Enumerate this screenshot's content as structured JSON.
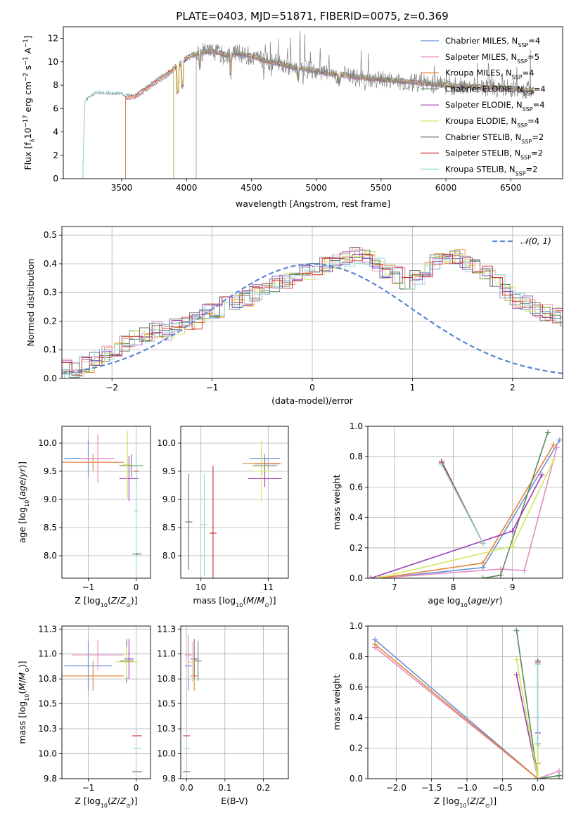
{
  "figure": {
    "title": "PLATE=0403, MJD=51871, FIBERID=0075, z=0.369"
  },
  "colors": [
    "#6a8fd8",
    "#e38bc2",
    "#e5822f",
    "#5a8a5a",
    "#9b3bb5",
    "#d3e55e",
    "#6a6a6a",
    "#c62828",
    "#8fd8d8"
  ],
  "chart_data": [
    {
      "id": "spectrum",
      "type": "line",
      "xlabel": "wavelength [Angstrom, rest frame]",
      "ylabel": "Flux [f_λ10^-17 erg cm^-2 s^-1 A^-1]",
      "xlim": [
        3050,
        6900
      ],
      "ylim": [
        0,
        13
      ],
      "xticks": [
        3500,
        4000,
        4500,
        5000,
        5500,
        6000,
        6500
      ],
      "yticks": [
        0,
        2,
        4,
        6,
        8,
        10,
        12
      ],
      "grid": false,
      "legend_position": "top-right",
      "legend": [
        {
          "pre": "Chabrier MILES, N",
          "sub": "SSP",
          "post": "=4"
        },
        {
          "pre": "Salpeter MILES, N",
          "sub": "SSP",
          "post": "=5"
        },
        {
          "pre": "Kroupa MILES, N",
          "sub": "SSP",
          "post": "=4"
        },
        {
          "pre": "Chabrier ELODIE, N",
          "sub": "SSP",
          "post": "=4"
        },
        {
          "pre": "Salpeter ELODIE, N",
          "sub": "SSP",
          "post": "=4"
        },
        {
          "pre": "Kroupa ELODIE, N",
          "sub": "SSP",
          "post": "=4"
        },
        {
          "pre": "Chabrier STELIB, N",
          "sub": "SSP",
          "post": "=2"
        },
        {
          "pre": "Salpeter STELIB, N",
          "sub": "SSP",
          "post": "=2"
        },
        {
          "pre": "Kroupa STELIB, N",
          "sub": "SSP",
          "post": "=2"
        }
      ],
      "model_starts": [
        3530,
        3530,
        3530,
        3900,
        3900,
        3900,
        3200,
        3530,
        3200
      ],
      "continuum": [
        [
          3200,
          0
        ],
        [
          3215,
          6.6
        ],
        [
          3300,
          7.3
        ],
        [
          3400,
          7.2
        ],
        [
          3500,
          7.2
        ],
        [
          3530,
          7.0
        ],
        [
          3600,
          7.0
        ],
        [
          3700,
          7.8
        ],
        [
          3800,
          8.6
        ],
        [
          3850,
          8.9
        ],
        [
          3920,
          9.6
        ],
        [
          3970,
          10.0
        ],
        [
          4000,
          10.3
        ],
        [
          4050,
          10.6
        ],
        [
          4100,
          10.8
        ],
        [
          4200,
          10.9
        ],
        [
          4300,
          10.6
        ],
        [
          4400,
          10.7
        ],
        [
          4500,
          10.5
        ],
        [
          4600,
          10.1
        ],
        [
          4700,
          9.9
        ],
        [
          4800,
          9.6
        ],
        [
          4900,
          9.4
        ],
        [
          5000,
          9.2
        ],
        [
          5100,
          9.0
        ],
        [
          5200,
          8.9
        ],
        [
          5300,
          8.7
        ],
        [
          5400,
          8.6
        ],
        [
          5500,
          8.5
        ],
        [
          5600,
          8.4
        ],
        [
          5700,
          8.3
        ],
        [
          5800,
          8.2
        ],
        [
          5900,
          8.1
        ],
        [
          6000,
          8.0
        ],
        [
          6100,
          7.9
        ],
        [
          6200,
          7.9
        ],
        [
          6300,
          7.8
        ],
        [
          6400,
          7.8
        ],
        [
          6500,
          7.7
        ],
        [
          6600,
          7.6
        ],
        [
          6680,
          7.6
        ]
      ]
    },
    {
      "id": "residuals",
      "type": "histogram",
      "xlabel": "(data-model)/error",
      "ylabel": "Normed distribution",
      "xlim": [
        -2.5,
        2.5
      ],
      "ylim": [
        0,
        0.53
      ],
      "xticks": [
        -2,
        -1,
        0,
        1,
        2
      ],
      "yticks": [
        0,
        0.1,
        0.2,
        0.3,
        0.4,
        0.5
      ],
      "grid": true,
      "legend_position": "top-right",
      "reference": {
        "label": "𝒩(0, 1)",
        "mean": 0,
        "sigma": 1
      },
      "bin_width": 0.1,
      "bin_start": -2.5,
      "base_counts": [
        0.04,
        0.03,
        0.05,
        0.07,
        0.09,
        0.1,
        0.12,
        0.14,
        0.15,
        0.17,
        0.16,
        0.18,
        0.19,
        0.2,
        0.23,
        0.24,
        0.26,
        0.27,
        0.28,
        0.3,
        0.31,
        0.33,
        0.34,
        0.36,
        0.37,
        0.38,
        0.4,
        0.41,
        0.42,
        0.43,
        0.42,
        0.39,
        0.37,
        0.36,
        0.34,
        0.35,
        0.38,
        0.41,
        0.42,
        0.42,
        0.4,
        0.39,
        0.37,
        0.34,
        0.3,
        0.27,
        0.26,
        0.24,
        0.23,
        0.22,
        0.2,
        0.18,
        0.17,
        0.15,
        0.14,
        0.13,
        0.11,
        0.1,
        0.09,
        0.08,
        0.07,
        0.06,
        0.05,
        0.05,
        0.04,
        0.03,
        0.02,
        0.02,
        0.01,
        0.01,
        0.01,
        0.01
      ]
    },
    {
      "id": "age-vs-Z",
      "type": "errorbar",
      "xlabel": "Z [log10(Z/Z⊙)]",
      "ylabel": "age [log10(age/yr)]",
      "xlim": [
        -1.55,
        0.3
      ],
      "ylim": [
        7.6,
        10.3
      ],
      "xticks": [
        -1,
        0
      ],
      "yticks": [
        8.0,
        8.5,
        9.0,
        9.5,
        10.0
      ],
      "grid": true,
      "points": [
        {
          "x": -1.0,
          "y": 9.73,
          "xerr": 0.5,
          "yerr": 0.33
        },
        {
          "x": -0.8,
          "y": 9.73,
          "xerr": 0.35,
          "yerr": 0.43
        },
        {
          "x": -0.9,
          "y": 9.66,
          "xerr": 0.65,
          "yerr": 0.15
        },
        {
          "x": -0.1,
          "y": 9.6,
          "xerr": 0.25,
          "yerr": 0.2
        },
        {
          "x": -0.15,
          "y": 9.37,
          "xerr": 0.2,
          "yerr": 0.4
        },
        {
          "x": -0.18,
          "y": 9.62,
          "xerr": 0.1,
          "yerr": 0.6
        },
        {
          "x": 0.02,
          "y": 8.03,
          "xerr": 0.1,
          "yerr": 0.02
        },
        {
          "x": 0.0,
          "y": 9.5,
          "xerr": 0.05,
          "yerr": 0.3
        },
        {
          "x": 0.0,
          "y": 8.8,
          "xerr": 0.05,
          "yerr": 1.05
        }
      ]
    },
    {
      "id": "age-vs-mass",
      "type": "errorbar",
      "xlabel": "mass [log10(M/M⊙)]",
      "ylabel": "",
      "xlim": [
        9.7,
        11.3
      ],
      "ylim": [
        7.6,
        10.3
      ],
      "xticks": [
        10,
        11
      ],
      "yticks": [
        8.0,
        8.5,
        9.0,
        9.5,
        10.0
      ],
      "grid": true,
      "points": [
        {
          "x": 10.95,
          "y": 9.73,
          "xerr": 0.22,
          "yerr": 0.08
        },
        {
          "x": 11.0,
          "y": 9.63,
          "xerr": 0.2,
          "yerr": 0.1
        },
        {
          "x": 10.9,
          "y": 9.64,
          "xerr": 0.28,
          "yerr": 0.2
        },
        {
          "x": 10.95,
          "y": 9.6,
          "xerr": 0.18,
          "yerr": 0.15
        },
        {
          "x": 10.95,
          "y": 9.37,
          "xerr": 0.25,
          "yerr": 0.15
        },
        {
          "x": 10.9,
          "y": 9.5,
          "xerr": 0.12,
          "yerr": 0.55
        },
        {
          "x": 9.82,
          "y": 8.6,
          "xerr": 0.0,
          "yerr": 0.85
        },
        {
          "x": 10.18,
          "y": 8.4,
          "xerr": 0.0,
          "yerr": 1.2
        },
        {
          "x": 10.05,
          "y": 8.55,
          "xerr": 0.0,
          "yerr": 0.9
        }
      ]
    },
    {
      "id": "massweight-vs-age",
      "type": "line",
      "xlabel": "age (log10(age/yr))",
      "ylabel": "mass weight",
      "xlim": [
        6.55,
        9.85
      ],
      "ylim": [
        0,
        1.0
      ],
      "xticks": [
        7,
        8,
        9
      ],
      "yticks": [
        0,
        0.2,
        0.4,
        0.6,
        0.8,
        1.0
      ],
      "grid": true,
      "series": [
        {
          "x": [
            6.75,
            8.5,
            9.8
          ],
          "y": [
            0.0,
            0.07,
            0.91
          ]
        },
        {
          "x": [
            6.7,
            8.8,
            9.2,
            9.75
          ],
          "y": [
            0.0,
            0.06,
            0.05,
            0.86
          ]
        },
        {
          "x": [
            6.75,
            8.5,
            9.7
          ],
          "y": [
            0.0,
            0.1,
            0.88
          ]
        },
        {
          "x": [
            8.5,
            8.8,
            9.6
          ],
          "y": [
            0.0,
            0.02,
            0.96
          ]
        },
        {
          "x": [
            6.6,
            9.0,
            9.5
          ],
          "y": [
            0.0,
            0.31,
            0.68
          ]
        },
        {
          "x": [
            6.7,
            9.0,
            9.7
          ],
          "y": [
            0.0,
            0.21,
            0.78
          ]
        },
        {
          "x": [
            7.8,
            8.5
          ],
          "y": [
            0.77,
            0.23
          ]
        },
        {
          "x": [
            7.8,
            8.5
          ],
          "y": [
            0.76,
            0.23
          ]
        },
        {
          "x": [
            7.8,
            8.5
          ],
          "y": [
            0.75,
            0.23
          ]
        }
      ]
    },
    {
      "id": "mass-vs-Z",
      "type": "errorbar",
      "xlabel": "Z [log10(Z/Z⊙)]",
      "ylabel": "mass [log10(M/M⊙)]",
      "xlim": [
        -1.55,
        0.3
      ],
      "ylim": [
        9.75,
        11.28
      ],
      "xticks": [
        -1,
        0
      ],
      "yticks": [
        9.75,
        10.0,
        10.25,
        10.5,
        10.75,
        11.0,
        11.25
      ],
      "grid": true,
      "points": [
        {
          "x": -1.0,
          "y": 10.88,
          "xerr": 0.5,
          "yerr": 0.25
        },
        {
          "x": -0.8,
          "y": 10.99,
          "xerr": 0.55,
          "yerr": 0.15
        },
        {
          "x": -0.9,
          "y": 10.78,
          "xerr": 0.65,
          "yerr": 0.15
        },
        {
          "x": -0.2,
          "y": 10.93,
          "xerr": 0.15,
          "yerr": 0.22
        },
        {
          "x": -0.15,
          "y": 10.95,
          "xerr": 0.1,
          "yerr": 0.2
        },
        {
          "x": -0.2,
          "y": 10.92,
          "xerr": 0.25,
          "yerr": 0.15
        },
        {
          "x": 0.02,
          "y": 9.82,
          "xerr": 0.1,
          "yerr": 0.0
        },
        {
          "x": 0.02,
          "y": 10.18,
          "xerr": 0.1,
          "yerr": 0.0
        },
        {
          "x": 0.02,
          "y": 10.05,
          "xerr": 0.08,
          "yerr": 0.0
        }
      ]
    },
    {
      "id": "mass-vs-EBV",
      "type": "errorbar",
      "xlabel": "E(B-V)",
      "ylabel": "",
      "xlim": [
        -0.015,
        0.265
      ],
      "ylim": [
        9.75,
        11.28
      ],
      "xticks": [
        0.0,
        0.1,
        0.2
      ],
      "yticks": [
        9.75,
        10.0,
        10.25,
        10.5,
        10.75,
        11.0,
        11.25
      ],
      "grid": true,
      "points": [
        {
          "x": 0.005,
          "y": 10.88,
          "xerr": 0.0,
          "yerr": 0.25
        },
        {
          "x": 0.005,
          "y": 10.99,
          "xerr": 0.0,
          "yerr": 0.2
        },
        {
          "x": 0.02,
          "y": 10.78,
          "xerr": 0.0,
          "yerr": 0.15
        },
        {
          "x": 0.03,
          "y": 10.93,
          "xerr": 0.0,
          "yerr": 0.2
        },
        {
          "x": 0.02,
          "y": 10.95,
          "xerr": 0.0,
          "yerr": 0.2
        },
        {
          "x": 0.015,
          "y": 10.92,
          "xerr": 0.0,
          "yerr": 0.2
        },
        {
          "x": 0.0,
          "y": 9.82,
          "xerr": 0.0,
          "yerr": 0.0
        },
        {
          "x": 0.0,
          "y": 10.18,
          "xerr": 0.0,
          "yerr": 0.0
        },
        {
          "x": 0.0,
          "y": 10.05,
          "xerr": 0.0,
          "yerr": 0.0
        }
      ]
    },
    {
      "id": "massweight-vs-Z",
      "type": "line",
      "xlabel": "Z [log10(Z/Z⊙)]",
      "ylabel": "mass weight",
      "xlim": [
        -2.4,
        0.35
      ],
      "ylim": [
        0,
        1.0
      ],
      "xticks": [
        -2.0,
        -1.5,
        -1.0,
        -0.5,
        0.0
      ],
      "yticks": [
        0,
        0.2,
        0.4,
        0.6,
        0.8,
        1.0
      ],
      "grid": true,
      "series": [
        {
          "x": [
            -2.3,
            0.0,
            0.3
          ],
          "y": [
            0.91,
            0.0,
            0.02
          ]
        },
        {
          "x": [
            -2.3,
            0.0,
            0.3
          ],
          "y": [
            0.86,
            0.0,
            0.05
          ]
        },
        {
          "x": [
            -2.3,
            0.0,
            0.0
          ],
          "y": [
            0.88,
            0.0,
            0.1
          ]
        },
        {
          "x": [
            -0.3,
            0.0,
            0.3
          ],
          "y": [
            0.97,
            0.0,
            0.02
          ]
        },
        {
          "x": [
            -0.3,
            0.0,
            0.0
          ],
          "y": [
            0.68,
            0.0,
            0.3
          ]
        },
        {
          "x": [
            -0.3,
            0.0,
            0.0
          ],
          "y": [
            0.78,
            0.0,
            0.22
          ]
        },
        {
          "x": [
            0.0,
            0.0
          ],
          "y": [
            0.77,
            0.23
          ]
        },
        {
          "x": [
            0.0,
            0.0
          ],
          "y": [
            0.76,
            0.23
          ]
        },
        {
          "x": [
            0.0,
            0.0
          ],
          "y": [
            0.75,
            0.23
          ]
        }
      ]
    }
  ]
}
